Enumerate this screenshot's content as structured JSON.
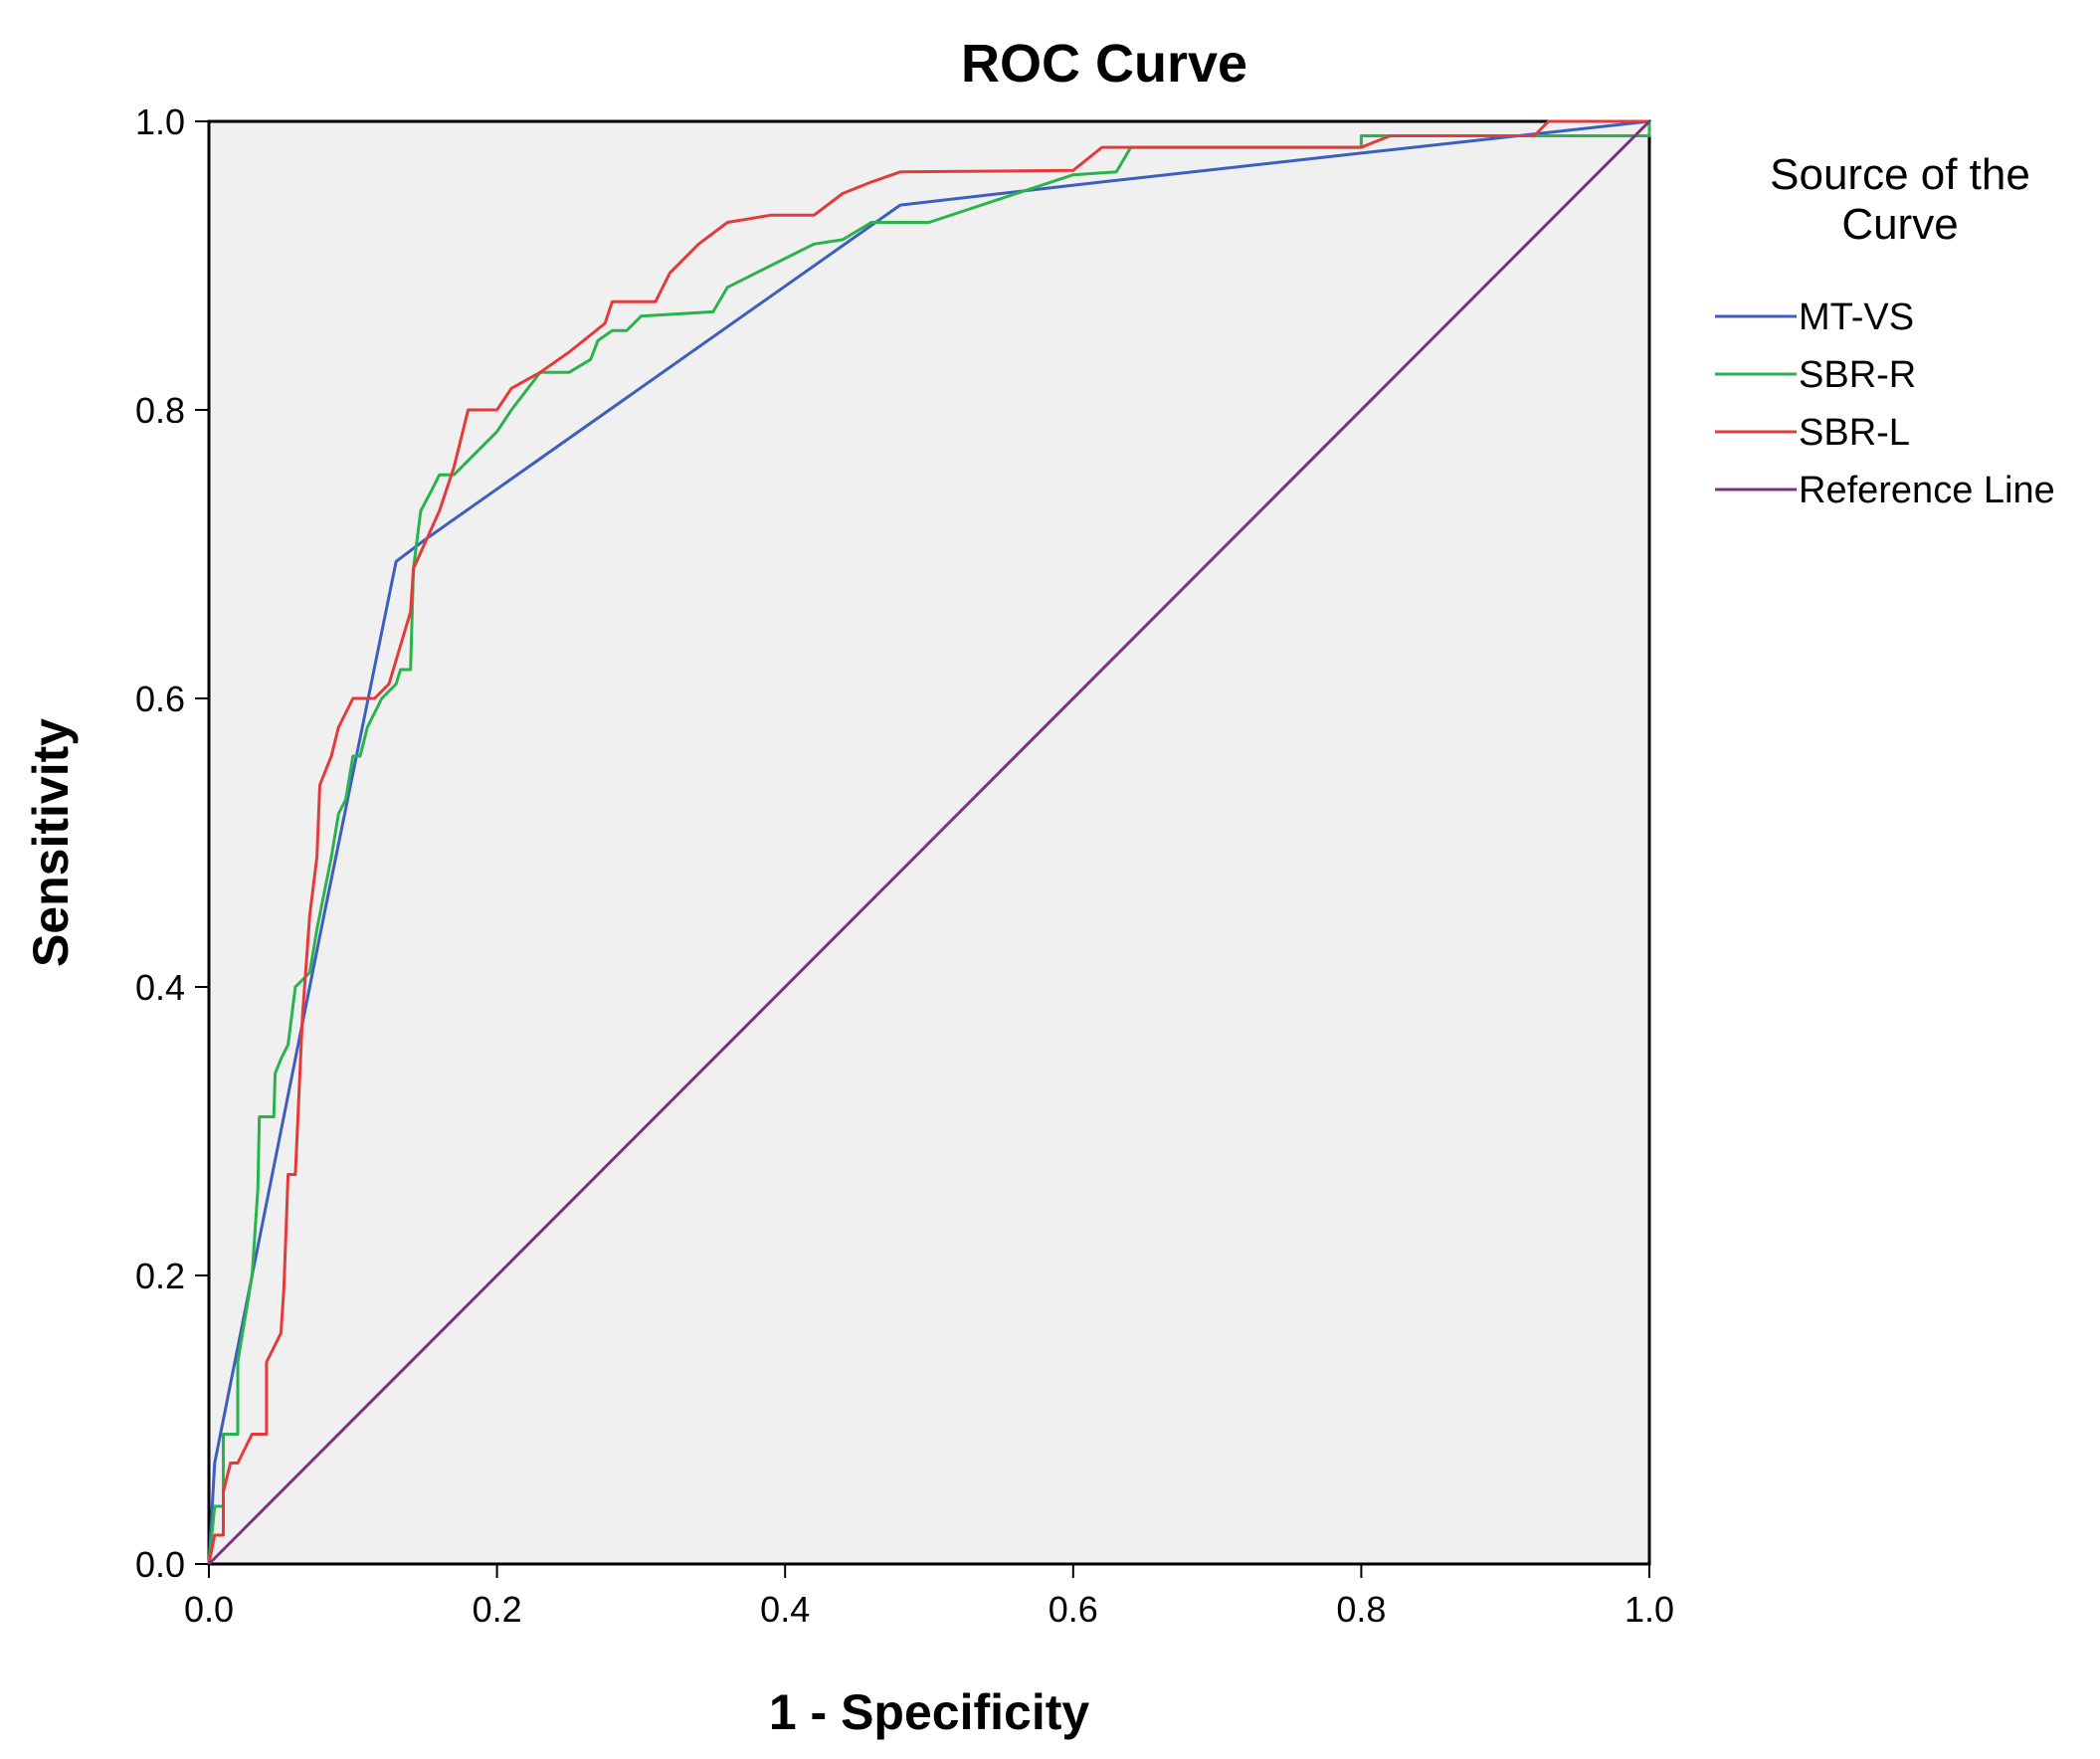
{
  "chart_data": {
    "type": "line",
    "title": "ROC Curve",
    "xlabel": "1 - Specificity",
    "ylabel": "Sensitivity",
    "xlim": [
      0,
      1
    ],
    "ylim": [
      0,
      1
    ],
    "x_ticks": [
      "0.0",
      "0.2",
      "0.4",
      "0.6",
      "0.8",
      "1.0"
    ],
    "y_ticks": [
      "0.0",
      "0.2",
      "0.4",
      "0.6",
      "0.8",
      "1.0"
    ],
    "grid": false,
    "legend": {
      "title_lines": [
        "Source of the",
        "Curve"
      ],
      "placement": "right"
    },
    "series": [
      {
        "name": "MT-VS",
        "color": "#3c5fbf",
        "points": [
          [
            0,
            0
          ],
          [
            0.004,
            0.07
          ],
          [
            0.03,
            0.2
          ],
          [
            0.08,
            0.45
          ],
          [
            0.13,
            0.695
          ],
          [
            0.15,
            0.71
          ],
          [
            0.48,
            0.942
          ],
          [
            0.62,
            0.958
          ],
          [
            0.8,
            0.978
          ],
          [
            1,
            1
          ]
        ]
      },
      {
        "name": "SBR-R",
        "color": "#28b44a",
        "points": [
          [
            0,
            0
          ],
          [
            0.004,
            0.04
          ],
          [
            0.01,
            0.04
          ],
          [
            0.01,
            0.09
          ],
          [
            0.02,
            0.09
          ],
          [
            0.02,
            0.14
          ],
          [
            0.03,
            0.2
          ],
          [
            0.034,
            0.26
          ],
          [
            0.035,
            0.31
          ],
          [
            0.045,
            0.31
          ],
          [
            0.046,
            0.34
          ],
          [
            0.05,
            0.35
          ],
          [
            0.055,
            0.36
          ],
          [
            0.06,
            0.4
          ],
          [
            0.07,
            0.41
          ],
          [
            0.075,
            0.44
          ],
          [
            0.085,
            0.49
          ],
          [
            0.09,
            0.52
          ],
          [
            0.095,
            0.53
          ],
          [
            0.1,
            0.56
          ],
          [
            0.105,
            0.56
          ],
          [
            0.11,
            0.58
          ],
          [
            0.12,
            0.6
          ],
          [
            0.13,
            0.61
          ],
          [
            0.133,
            0.62
          ],
          [
            0.14,
            0.62
          ],
          [
            0.142,
            0.69
          ],
          [
            0.147,
            0.73
          ],
          [
            0.155,
            0.745
          ],
          [
            0.16,
            0.755
          ],
          [
            0.17,
            0.755
          ],
          [
            0.2,
            0.785
          ],
          [
            0.21,
            0.8
          ],
          [
            0.23,
            0.826
          ],
          [
            0.25,
            0.826
          ],
          [
            0.265,
            0.835
          ],
          [
            0.27,
            0.848
          ],
          [
            0.28,
            0.855
          ],
          [
            0.29,
            0.855
          ],
          [
            0.3,
            0.865
          ],
          [
            0.35,
            0.868
          ],
          [
            0.36,
            0.885
          ],
          [
            0.39,
            0.9
          ],
          [
            0.42,
            0.915
          ],
          [
            0.44,
            0.918
          ],
          [
            0.46,
            0.93
          ],
          [
            0.5,
            0.93
          ],
          [
            0.6,
            0.963
          ],
          [
            0.63,
            0.965
          ],
          [
            0.64,
            0.982
          ],
          [
            0.66,
            0.982
          ],
          [
            0.8,
            0.982
          ],
          [
            0.8,
            0.99
          ],
          [
            1,
            0.99
          ],
          [
            1,
            1
          ]
        ]
      },
      {
        "name": "SBR-L",
        "color": "#e63a3a",
        "points": [
          [
            0,
            0
          ],
          [
            0.004,
            0.02
          ],
          [
            0.01,
            0.02
          ],
          [
            0.01,
            0.05
          ],
          [
            0.015,
            0.07
          ],
          [
            0.02,
            0.07
          ],
          [
            0.025,
            0.08
          ],
          [
            0.03,
            0.09
          ],
          [
            0.04,
            0.09
          ],
          [
            0.04,
            0.14
          ],
          [
            0.045,
            0.15
          ],
          [
            0.05,
            0.16
          ],
          [
            0.052,
            0.19
          ],
          [
            0.055,
            0.27
          ],
          [
            0.06,
            0.27
          ],
          [
            0.065,
            0.38
          ],
          [
            0.07,
            0.45
          ],
          [
            0.075,
            0.49
          ],
          [
            0.077,
            0.54
          ],
          [
            0.085,
            0.56
          ],
          [
            0.09,
            0.58
          ],
          [
            0.1,
            0.6
          ],
          [
            0.115,
            0.6
          ],
          [
            0.125,
            0.61
          ],
          [
            0.14,
            0.66
          ],
          [
            0.142,
            0.69
          ],
          [
            0.16,
            0.73
          ],
          [
            0.17,
            0.76
          ],
          [
            0.18,
            0.8
          ],
          [
            0.19,
            0.8
          ],
          [
            0.2,
            0.8
          ],
          [
            0.21,
            0.815
          ],
          [
            0.23,
            0.826
          ],
          [
            0.25,
            0.84
          ],
          [
            0.26,
            0.848
          ],
          [
            0.275,
            0.86
          ],
          [
            0.28,
            0.875
          ],
          [
            0.31,
            0.875
          ],
          [
            0.32,
            0.895
          ],
          [
            0.34,
            0.915
          ],
          [
            0.36,
            0.93
          ],
          [
            0.39,
            0.935
          ],
          [
            0.42,
            0.935
          ],
          [
            0.44,
            0.95
          ],
          [
            0.46,
            0.958
          ],
          [
            0.48,
            0.965
          ],
          [
            0.6,
            0.966
          ],
          [
            0.62,
            0.982
          ],
          [
            0.8,
            0.982
          ],
          [
            0.82,
            0.99
          ],
          [
            0.92,
            0.99
          ],
          [
            0.93,
            1
          ],
          [
            1,
            1
          ]
        ]
      },
      {
        "name": "Reference Line",
        "color": "#7f2f86",
        "points": [
          [
            0,
            0
          ],
          [
            1,
            1
          ]
        ]
      }
    ]
  }
}
